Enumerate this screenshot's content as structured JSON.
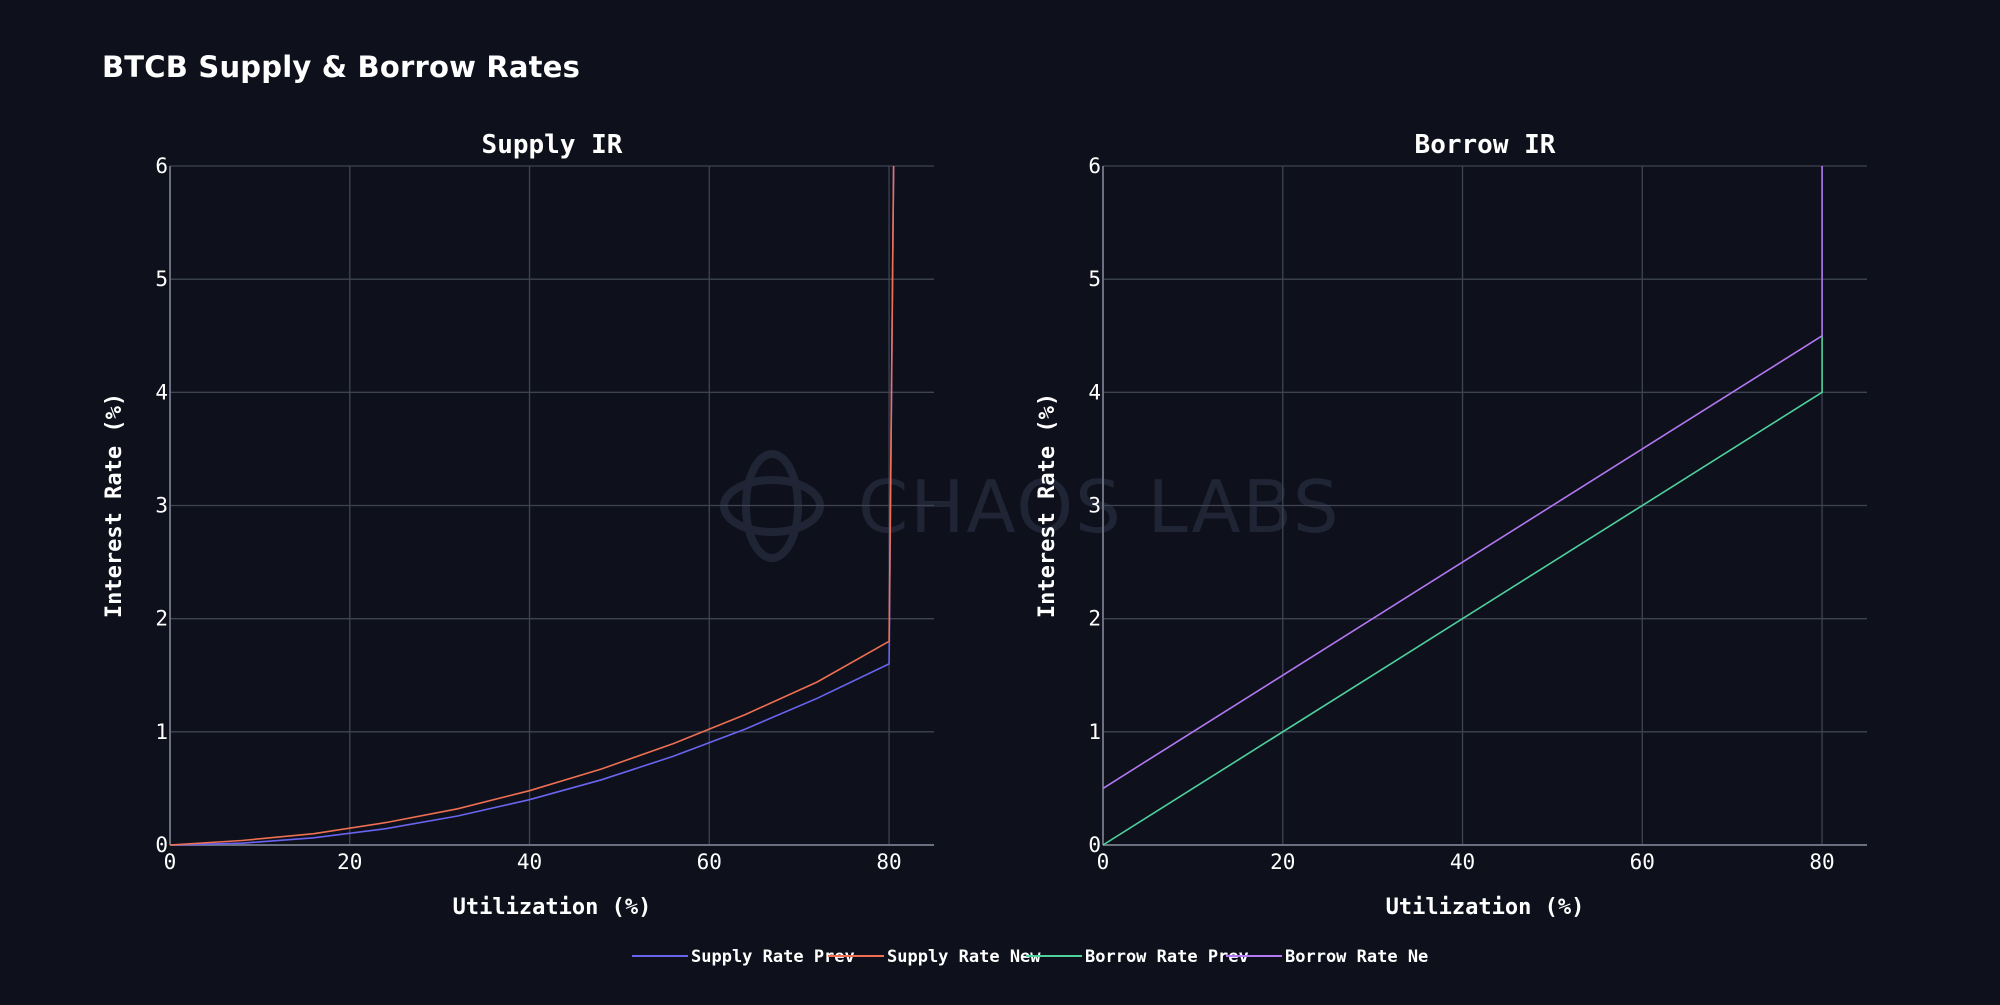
{
  "title": "BTCB Supply & Borrow Rates",
  "watermark": {
    "text": "CHAOS LABS",
    "icon": "chaos-labs-logo-icon"
  },
  "colors": {
    "background": "#0e111b",
    "grid": "#3f4452",
    "axis": "#6b7080",
    "watermark": "#22283a"
  },
  "legend": {
    "placement": "bottom-center",
    "items": [
      {
        "label": "Supply Rate Prev",
        "color": "#6a64f0"
      },
      {
        "label": "Supply Rate New",
        "color": "#ee6f52"
      },
      {
        "label": "Borrow Rate Prev",
        "color": "#4fd19e"
      },
      {
        "label": "Borrow Rate Ne",
        "color": "#b378f3"
      }
    ]
  },
  "chart_data": [
    {
      "type": "line",
      "title": "Supply IR",
      "xlabel": "Utilization (%)",
      "ylabel": "Interest Rate (%)",
      "xlim": [
        0,
        85
      ],
      "ylim": [
        0,
        6
      ],
      "xticks": [
        0,
        20,
        40,
        60,
        80
      ],
      "yticks": [
        0,
        1,
        2,
        3,
        4,
        5,
        6
      ],
      "grid": true,
      "series": [
        {
          "name": "Supply Rate Prev",
          "color": "#6a64f0",
          "points": [
            [
              0,
              0
            ],
            [
              8,
              0.016
            ],
            [
              16,
              0.064
            ],
            [
              24,
              0.144
            ],
            [
              32,
              0.256
            ],
            [
              40,
              0.4
            ],
            [
              48,
              0.576
            ],
            [
              56,
              0.784
            ],
            [
              64,
              1.024
            ],
            [
              72,
              1.296
            ],
            [
              80,
              1.6
            ],
            [
              80.5,
              6
            ]
          ]
        },
        {
          "name": "Supply Rate New",
          "color": "#ee6f52",
          "points": [
            [
              0,
              0
            ],
            [
              8,
              0.04
            ],
            [
              16,
              0.1
            ],
            [
              24,
              0.198
            ],
            [
              32,
              0.32
            ],
            [
              40,
              0.48
            ],
            [
              48,
              0.672
            ],
            [
              56,
              0.896
            ],
            [
              64,
              1.152
            ],
            [
              72,
              1.44
            ],
            [
              80,
              1.8
            ],
            [
              80.5,
              6
            ]
          ]
        }
      ]
    },
    {
      "type": "line",
      "title": "Borrow IR",
      "xlabel": "Utilization (%)",
      "ylabel": "Interest Rate (%)",
      "xlim": [
        0,
        85
      ],
      "ylim": [
        0,
        6
      ],
      "xticks": [
        0,
        20,
        40,
        60,
        80
      ],
      "yticks": [
        0,
        1,
        2,
        3,
        4,
        5,
        6
      ],
      "grid": true,
      "series": [
        {
          "name": "Borrow Rate Prev",
          "color": "#4fd19e",
          "points": [
            [
              0,
              0
            ],
            [
              80,
              4
            ],
            [
              80,
              4.5
            ]
          ]
        },
        {
          "name": "Borrow Rate New",
          "color": "#b378f3",
          "points": [
            [
              0,
              0.5
            ],
            [
              80,
              4.5
            ],
            [
              80,
              6
            ]
          ]
        }
      ]
    }
  ]
}
